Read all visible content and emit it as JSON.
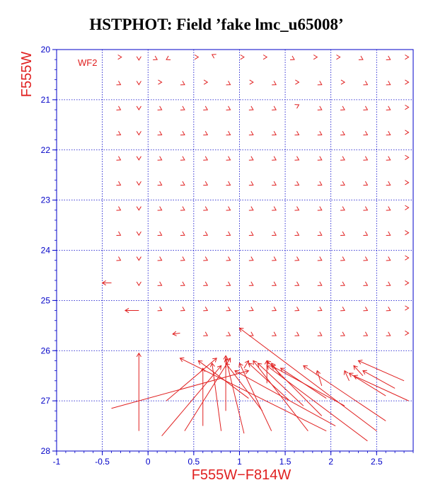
{
  "title": "HSTPHOT: Field ’fake lmc_u65008’",
  "colors": {
    "axis": "#0000c8",
    "grid": "#0000c8",
    "vectors": "#e02020",
    "title": "#000000"
  },
  "chart_data": {
    "type": "vector-field",
    "title": "HSTPHOT: Field ’fake lmc_u65008’",
    "xlabel": "F555W−F814W",
    "ylabel": "F555W",
    "panel_label": "WF2",
    "xlim": [
      -1.0,
      2.9
    ],
    "ylim": [
      28,
      20
    ],
    "y_inverted": true,
    "xticks": [
      -1,
      -0.5,
      0,
      0.5,
      1,
      1.5,
      2,
      2.5
    ],
    "yticks": [
      20,
      21,
      22,
      23,
      24,
      25,
      26,
      27,
      28
    ],
    "grid": true,
    "vectors": [
      {
        "x": -0.35,
        "y": 20.15,
        "dx": 0.06,
        "dy": 0.0
      },
      {
        "x": -0.1,
        "y": 20.15,
        "dx": 0.0,
        "dy": 0.06
      },
      {
        "x": 0.05,
        "y": 20.15,
        "dx": 0.05,
        "dy": 0.05
      },
      {
        "x": 0.25,
        "y": 20.15,
        "dx": -0.05,
        "dy": 0.05
      },
      {
        "x": 0.5,
        "y": 20.15,
        "dx": 0.05,
        "dy": 0.0
      },
      {
        "x": 0.75,
        "y": 20.15,
        "dx": -0.05,
        "dy": -0.05
      },
      {
        "x": 1.0,
        "y": 20.15,
        "dx": 0.05,
        "dy": 0.0
      },
      {
        "x": 1.25,
        "y": 20.15,
        "dx": 0.05,
        "dy": 0.0
      },
      {
        "x": 1.55,
        "y": 20.15,
        "dx": 0.05,
        "dy": 0.05
      },
      {
        "x": 1.8,
        "y": 20.15,
        "dx": 0.05,
        "dy": 0.0
      },
      {
        "x": 2.05,
        "y": 20.15,
        "dx": 0.05,
        "dy": 0.0
      },
      {
        "x": 2.3,
        "y": 20.15,
        "dx": 0.05,
        "dy": 0.05
      },
      {
        "x": 2.6,
        "y": 20.15,
        "dx": 0.05,
        "dy": 0.05
      },
      {
        "x": 2.8,
        "y": 20.15,
        "dx": 0.05,
        "dy": 0.0
      },
      {
        "x": -0.35,
        "y": 20.65,
        "dx": 0.05,
        "dy": 0.05
      },
      {
        "x": -0.1,
        "y": 20.65,
        "dx": 0.0,
        "dy": 0.05
      },
      {
        "x": 0.1,
        "y": 20.65,
        "dx": 0.05,
        "dy": 0.0
      },
      {
        "x": 0.35,
        "y": 20.65,
        "dx": 0.05,
        "dy": 0.05
      },
      {
        "x": 0.6,
        "y": 20.65,
        "dx": 0.05,
        "dy": 0.0
      },
      {
        "x": 0.85,
        "y": 20.65,
        "dx": 0.05,
        "dy": 0.05
      },
      {
        "x": 1.1,
        "y": 20.65,
        "dx": 0.05,
        "dy": 0.0
      },
      {
        "x": 1.35,
        "y": 20.65,
        "dx": 0.05,
        "dy": 0.05
      },
      {
        "x": 1.6,
        "y": 20.65,
        "dx": 0.05,
        "dy": 0.0
      },
      {
        "x": 1.85,
        "y": 20.65,
        "dx": 0.05,
        "dy": 0.05
      },
      {
        "x": 2.1,
        "y": 20.65,
        "dx": 0.05,
        "dy": 0.0
      },
      {
        "x": 2.35,
        "y": 20.65,
        "dx": 0.05,
        "dy": 0.05
      },
      {
        "x": 2.6,
        "y": 20.65,
        "dx": 0.05,
        "dy": 0.05
      },
      {
        "x": 2.8,
        "y": 20.65,
        "dx": 0.05,
        "dy": 0.0
      },
      {
        "x": -0.35,
        "y": 21.15,
        "dx": 0.05,
        "dy": 0.05
      },
      {
        "x": -0.1,
        "y": 21.15,
        "dx": 0.0,
        "dy": 0.05
      },
      {
        "x": 0.1,
        "y": 21.15,
        "dx": 0.05,
        "dy": 0.05
      },
      {
        "x": 0.35,
        "y": 21.15,
        "dx": 0.05,
        "dy": 0.05
      },
      {
        "x": 0.6,
        "y": 21.15,
        "dx": 0.05,
        "dy": 0.05
      },
      {
        "x": 0.85,
        "y": 21.15,
        "dx": 0.05,
        "dy": 0.05
      },
      {
        "x": 1.1,
        "y": 21.15,
        "dx": 0.05,
        "dy": 0.05
      },
      {
        "x": 1.35,
        "y": 21.15,
        "dx": 0.05,
        "dy": 0.05
      },
      {
        "x": 1.6,
        "y": 21.15,
        "dx": 0.05,
        "dy": -0.05
      },
      {
        "x": 1.85,
        "y": 21.15,
        "dx": 0.05,
        "dy": 0.05
      },
      {
        "x": 2.1,
        "y": 21.15,
        "dx": 0.05,
        "dy": 0.05
      },
      {
        "x": 2.35,
        "y": 21.15,
        "dx": 0.05,
        "dy": 0.05
      },
      {
        "x": 2.6,
        "y": 21.15,
        "dx": 0.05,
        "dy": 0.05
      },
      {
        "x": 2.8,
        "y": 21.15,
        "dx": 0.05,
        "dy": 0.0
      },
      {
        "x": -0.35,
        "y": 21.65,
        "dx": 0.05,
        "dy": 0.05
      },
      {
        "x": -0.1,
        "y": 21.65,
        "dx": 0.0,
        "dy": 0.05
      },
      {
        "x": 0.1,
        "y": 21.65,
        "dx": 0.05,
        "dy": 0.05
      },
      {
        "x": 0.35,
        "y": 21.65,
        "dx": 0.05,
        "dy": 0.05
      },
      {
        "x": 0.6,
        "y": 21.65,
        "dx": 0.05,
        "dy": 0.05
      },
      {
        "x": 0.85,
        "y": 21.65,
        "dx": 0.05,
        "dy": 0.05
      },
      {
        "x": 1.1,
        "y": 21.65,
        "dx": 0.05,
        "dy": 0.05
      },
      {
        "x": 1.35,
        "y": 21.65,
        "dx": 0.05,
        "dy": 0.05
      },
      {
        "x": 1.6,
        "y": 21.65,
        "dx": 0.05,
        "dy": 0.05
      },
      {
        "x": 1.85,
        "y": 21.65,
        "dx": 0.05,
        "dy": 0.05
      },
      {
        "x": 2.1,
        "y": 21.65,
        "dx": 0.05,
        "dy": 0.05
      },
      {
        "x": 2.35,
        "y": 21.65,
        "dx": 0.05,
        "dy": 0.05
      },
      {
        "x": 2.6,
        "y": 21.65,
        "dx": 0.05,
        "dy": 0.05
      },
      {
        "x": 2.8,
        "y": 21.65,
        "dx": 0.05,
        "dy": 0.0
      },
      {
        "x": -0.35,
        "y": 22.15,
        "dx": 0.05,
        "dy": 0.05
      },
      {
        "x": -0.1,
        "y": 22.15,
        "dx": 0.0,
        "dy": 0.05
      },
      {
        "x": 0.1,
        "y": 22.15,
        "dx": 0.05,
        "dy": 0.05
      },
      {
        "x": 0.35,
        "y": 22.15,
        "dx": 0.05,
        "dy": 0.05
      },
      {
        "x": 0.6,
        "y": 22.15,
        "dx": 0.05,
        "dy": 0.05
      },
      {
        "x": 0.85,
        "y": 22.15,
        "dx": 0.05,
        "dy": 0.05
      },
      {
        "x": 1.1,
        "y": 22.15,
        "dx": 0.05,
        "dy": 0.05
      },
      {
        "x": 1.35,
        "y": 22.15,
        "dx": 0.05,
        "dy": 0.05
      },
      {
        "x": 1.6,
        "y": 22.15,
        "dx": 0.05,
        "dy": 0.05
      },
      {
        "x": 1.85,
        "y": 22.15,
        "dx": 0.05,
        "dy": 0.05
      },
      {
        "x": 2.1,
        "y": 22.15,
        "dx": 0.05,
        "dy": 0.05
      },
      {
        "x": 2.35,
        "y": 22.15,
        "dx": 0.05,
        "dy": 0.05
      },
      {
        "x": 2.6,
        "y": 22.15,
        "dx": 0.05,
        "dy": 0.05
      },
      {
        "x": 2.8,
        "y": 22.15,
        "dx": 0.05,
        "dy": 0.0
      },
      {
        "x": -0.35,
        "y": 22.65,
        "dx": 0.05,
        "dy": 0.05
      },
      {
        "x": -0.1,
        "y": 22.65,
        "dx": 0.0,
        "dy": 0.05
      },
      {
        "x": 0.1,
        "y": 22.65,
        "dx": 0.05,
        "dy": 0.05
      },
      {
        "x": 0.35,
        "y": 22.65,
        "dx": 0.05,
        "dy": 0.05
      },
      {
        "x": 0.6,
        "y": 22.65,
        "dx": 0.05,
        "dy": 0.05
      },
      {
        "x": 0.85,
        "y": 22.65,
        "dx": 0.05,
        "dy": 0.05
      },
      {
        "x": 1.1,
        "y": 22.65,
        "dx": 0.05,
        "dy": 0.05
      },
      {
        "x": 1.35,
        "y": 22.65,
        "dx": 0.05,
        "dy": 0.05
      },
      {
        "x": 1.6,
        "y": 22.65,
        "dx": 0.05,
        "dy": 0.05
      },
      {
        "x": 1.85,
        "y": 22.65,
        "dx": 0.05,
        "dy": 0.05
      },
      {
        "x": 2.1,
        "y": 22.65,
        "dx": 0.05,
        "dy": 0.05
      },
      {
        "x": 2.35,
        "y": 22.65,
        "dx": 0.05,
        "dy": 0.05
      },
      {
        "x": 2.6,
        "y": 22.65,
        "dx": 0.05,
        "dy": 0.05
      },
      {
        "x": 2.8,
        "y": 22.65,
        "dx": 0.05,
        "dy": 0.0
      },
      {
        "x": -0.35,
        "y": 23.15,
        "dx": 0.05,
        "dy": 0.05
      },
      {
        "x": -0.1,
        "y": 23.15,
        "dx": 0.0,
        "dy": 0.05
      },
      {
        "x": 0.1,
        "y": 23.15,
        "dx": 0.05,
        "dy": 0.05
      },
      {
        "x": 0.35,
        "y": 23.15,
        "dx": 0.05,
        "dy": 0.05
      },
      {
        "x": 0.6,
        "y": 23.15,
        "dx": 0.05,
        "dy": 0.05
      },
      {
        "x": 0.85,
        "y": 23.15,
        "dx": 0.05,
        "dy": 0.05
      },
      {
        "x": 1.1,
        "y": 23.15,
        "dx": 0.05,
        "dy": 0.05
      },
      {
        "x": 1.35,
        "y": 23.15,
        "dx": 0.05,
        "dy": 0.05
      },
      {
        "x": 1.6,
        "y": 23.15,
        "dx": 0.05,
        "dy": 0.05
      },
      {
        "x": 1.85,
        "y": 23.15,
        "dx": 0.05,
        "dy": 0.05
      },
      {
        "x": 2.1,
        "y": 23.15,
        "dx": 0.05,
        "dy": 0.05
      },
      {
        "x": 2.35,
        "y": 23.15,
        "dx": 0.05,
        "dy": 0.05
      },
      {
        "x": 2.6,
        "y": 23.15,
        "dx": 0.05,
        "dy": 0.05
      },
      {
        "x": 2.8,
        "y": 23.15,
        "dx": 0.05,
        "dy": 0.0
      },
      {
        "x": -0.35,
        "y": 23.65,
        "dx": 0.05,
        "dy": 0.05
      },
      {
        "x": -0.1,
        "y": 23.65,
        "dx": 0.0,
        "dy": 0.05
      },
      {
        "x": 0.1,
        "y": 23.65,
        "dx": 0.05,
        "dy": 0.05
      },
      {
        "x": 0.35,
        "y": 23.65,
        "dx": 0.05,
        "dy": 0.05
      },
      {
        "x": 0.6,
        "y": 23.65,
        "dx": 0.05,
        "dy": 0.05
      },
      {
        "x": 0.85,
        "y": 23.65,
        "dx": 0.05,
        "dy": 0.05
      },
      {
        "x": 1.1,
        "y": 23.65,
        "dx": 0.05,
        "dy": 0.05
      },
      {
        "x": 1.35,
        "y": 23.65,
        "dx": 0.05,
        "dy": 0.05
      },
      {
        "x": 1.6,
        "y": 23.65,
        "dx": 0.05,
        "dy": 0.05
      },
      {
        "x": 1.85,
        "y": 23.65,
        "dx": 0.05,
        "dy": 0.05
      },
      {
        "x": 2.1,
        "y": 23.65,
        "dx": 0.05,
        "dy": 0.05
      },
      {
        "x": 2.35,
        "y": 23.65,
        "dx": 0.05,
        "dy": 0.05
      },
      {
        "x": 2.6,
        "y": 23.65,
        "dx": 0.05,
        "dy": 0.05
      },
      {
        "x": 2.8,
        "y": 23.65,
        "dx": 0.05,
        "dy": 0.0
      },
      {
        "x": -0.35,
        "y": 24.15,
        "dx": 0.05,
        "dy": 0.05
      },
      {
        "x": -0.1,
        "y": 24.15,
        "dx": 0.0,
        "dy": 0.05
      },
      {
        "x": 0.1,
        "y": 24.15,
        "dx": 0.05,
        "dy": 0.05
      },
      {
        "x": 0.35,
        "y": 24.15,
        "dx": 0.05,
        "dy": 0.05
      },
      {
        "x": 0.6,
        "y": 24.15,
        "dx": 0.05,
        "dy": 0.05
      },
      {
        "x": 0.85,
        "y": 24.15,
        "dx": 0.05,
        "dy": 0.05
      },
      {
        "x": 1.1,
        "y": 24.15,
        "dx": 0.05,
        "dy": 0.05
      },
      {
        "x": 1.35,
        "y": 24.15,
        "dx": 0.05,
        "dy": 0.05
      },
      {
        "x": 1.6,
        "y": 24.15,
        "dx": 0.05,
        "dy": 0.05
      },
      {
        "x": 1.85,
        "y": 24.15,
        "dx": 0.05,
        "dy": 0.05
      },
      {
        "x": 2.1,
        "y": 24.15,
        "dx": 0.05,
        "dy": 0.05
      },
      {
        "x": 2.35,
        "y": 24.15,
        "dx": 0.05,
        "dy": 0.05
      },
      {
        "x": 2.6,
        "y": 24.15,
        "dx": 0.05,
        "dy": 0.05
      },
      {
        "x": 2.8,
        "y": 24.15,
        "dx": 0.05,
        "dy": 0.0
      },
      {
        "x": -0.4,
        "y": 24.65,
        "dx": -0.1,
        "dy": 0.0
      },
      {
        "x": -0.1,
        "y": 24.65,
        "dx": 0.0,
        "dy": 0.05
      },
      {
        "x": 0.1,
        "y": 24.65,
        "dx": 0.05,
        "dy": 0.05
      },
      {
        "x": 0.35,
        "y": 24.65,
        "dx": 0.05,
        "dy": 0.05
      },
      {
        "x": 0.6,
        "y": 24.65,
        "dx": 0.05,
        "dy": 0.05
      },
      {
        "x": 0.85,
        "y": 24.65,
        "dx": 0.05,
        "dy": 0.05
      },
      {
        "x": 1.1,
        "y": 24.65,
        "dx": 0.05,
        "dy": 0.05
      },
      {
        "x": 1.35,
        "y": 24.65,
        "dx": 0.05,
        "dy": 0.05
      },
      {
        "x": 1.6,
        "y": 24.65,
        "dx": 0.05,
        "dy": 0.05
      },
      {
        "x": 1.85,
        "y": 24.65,
        "dx": 0.05,
        "dy": 0.05
      },
      {
        "x": 2.1,
        "y": 24.65,
        "dx": 0.05,
        "dy": 0.05
      },
      {
        "x": 2.35,
        "y": 24.65,
        "dx": 0.05,
        "dy": 0.05
      },
      {
        "x": 2.6,
        "y": 24.65,
        "dx": 0.05,
        "dy": 0.05
      },
      {
        "x": 2.8,
        "y": 24.65,
        "dx": 0.05,
        "dy": 0.0
      },
      {
        "x": -0.1,
        "y": 25.2,
        "dx": -0.15,
        "dy": 0.0
      },
      {
        "x": 0.1,
        "y": 25.15,
        "dx": 0.05,
        "dy": 0.05
      },
      {
        "x": 0.35,
        "y": 25.15,
        "dx": 0.05,
        "dy": 0.05
      },
      {
        "x": 0.6,
        "y": 25.15,
        "dx": 0.05,
        "dy": 0.05
      },
      {
        "x": 0.85,
        "y": 25.15,
        "dx": 0.05,
        "dy": 0.05
      },
      {
        "x": 1.1,
        "y": 25.15,
        "dx": 0.05,
        "dy": 0.05
      },
      {
        "x": 1.35,
        "y": 25.15,
        "dx": 0.05,
        "dy": 0.05
      },
      {
        "x": 1.6,
        "y": 25.15,
        "dx": 0.05,
        "dy": 0.05
      },
      {
        "x": 1.85,
        "y": 25.15,
        "dx": 0.05,
        "dy": 0.05
      },
      {
        "x": 2.1,
        "y": 25.15,
        "dx": 0.05,
        "dy": 0.05
      },
      {
        "x": 2.35,
        "y": 25.15,
        "dx": 0.05,
        "dy": 0.05
      },
      {
        "x": 2.6,
        "y": 25.15,
        "dx": 0.05,
        "dy": 0.05
      },
      {
        "x": 2.8,
        "y": 25.15,
        "dx": 0.05,
        "dy": 0.0
      },
      {
        "x": 0.35,
        "y": 25.65,
        "dx": -0.08,
        "dy": 0.02
      },
      {
        "x": 0.6,
        "y": 25.65,
        "dx": 0.05,
        "dy": 0.05
      },
      {
        "x": 0.85,
        "y": 25.65,
        "dx": 0.05,
        "dy": 0.05
      },
      {
        "x": 1.1,
        "y": 25.65,
        "dx": 0.05,
        "dy": 0.05
      },
      {
        "x": 1.35,
        "y": 25.65,
        "dx": 0.05,
        "dy": 0.05
      },
      {
        "x": 1.6,
        "y": 25.65,
        "dx": 0.05,
        "dy": 0.05
      },
      {
        "x": 1.85,
        "y": 25.65,
        "dx": 0.05,
        "dy": 0.05
      },
      {
        "x": 2.1,
        "y": 25.65,
        "dx": 0.05,
        "dy": 0.05
      },
      {
        "x": 2.35,
        "y": 25.65,
        "dx": 0.05,
        "dy": 0.05
      },
      {
        "x": 2.6,
        "y": 25.65,
        "dx": 0.05,
        "dy": 0.05
      },
      {
        "x": 2.8,
        "y": 25.65,
        "dx": 0.05,
        "dy": 0.0
      },
      {
        "x": -0.1,
        "y": 27.6,
        "dx": 0.0,
        "dy": -1.55
      },
      {
        "x": -0.4,
        "y": 27.15,
        "dx": 1.5,
        "dy": -0.75
      },
      {
        "x": 0.15,
        "y": 27.7,
        "dx": 0.65,
        "dy": -1.4
      },
      {
        "x": 0.2,
        "y": 27.0,
        "dx": 0.55,
        "dy": -0.85
      },
      {
        "x": 0.4,
        "y": 27.6,
        "dx": 0.5,
        "dy": -1.45
      },
      {
        "x": 0.6,
        "y": 27.5,
        "dx": 0.0,
        "dy": -1.15
      },
      {
        "x": 0.8,
        "y": 27.6,
        "dx": -0.1,
        "dy": -1.35
      },
      {
        "x": 0.85,
        "y": 27.2,
        "dx": 0.0,
        "dy": -1.1
      },
      {
        "x": 1.05,
        "y": 27.65,
        "dx": -0.2,
        "dy": -1.5
      },
      {
        "x": 1.1,
        "y": 26.95,
        "dx": -0.55,
        "dy": -0.75
      },
      {
        "x": 1.25,
        "y": 27.2,
        "dx": -0.4,
        "dy": -0.95
      },
      {
        "x": 1.35,
        "y": 27.6,
        "dx": -0.35,
        "dy": -1.35
      },
      {
        "x": 1.55,
        "y": 27.0,
        "dx": -0.45,
        "dy": -0.75
      },
      {
        "x": 1.7,
        "y": 27.1,
        "dx": -0.5,
        "dy": -0.85
      },
      {
        "x": 1.75,
        "y": 27.6,
        "dx": -0.6,
        "dy": -1.4
      },
      {
        "x": 1.9,
        "y": 27.3,
        "dx": -0.6,
        "dy": -1.1
      },
      {
        "x": 1.95,
        "y": 26.95,
        "dx": -0.5,
        "dy": -0.6
      },
      {
        "x": 1.95,
        "y": 27.6,
        "dx": -1.6,
        "dy": -1.45
      },
      {
        "x": 2.05,
        "y": 27.5,
        "dx": -1.1,
        "dy": -1.1
      },
      {
        "x": 2.15,
        "y": 27.1,
        "dx": -0.8,
        "dy": -0.8
      },
      {
        "x": 2.4,
        "y": 27.8,
        "dx": -1.1,
        "dy": -1.5
      },
      {
        "x": 2.5,
        "y": 27.6,
        "dx": -1.5,
        "dy": -2.05
      },
      {
        "x": 2.6,
        "y": 27.4,
        "dx": -0.9,
        "dy": -1.1
      },
      {
        "x": 2.6,
        "y": 26.9,
        "dx": -0.4,
        "dy": -0.45
      },
      {
        "x": 2.7,
        "y": 26.75,
        "dx": -0.35,
        "dy": -0.35
      },
      {
        "x": 2.8,
        "y": 26.6,
        "dx": -0.5,
        "dy": -0.4
      },
      {
        "x": 2.85,
        "y": 27.0,
        "dx": -0.6,
        "dy": -0.5
      },
      {
        "x": 1.3,
        "y": 26.65,
        "dx": 0.0,
        "dy": -0.45
      },
      {
        "x": 1.45,
        "y": 26.5,
        "dx": -0.1,
        "dy": -0.25
      },
      {
        "x": 1.9,
        "y": 26.7,
        "dx": -0.05,
        "dy": -0.3
      },
      {
        "x": 2.2,
        "y": 26.6,
        "dx": -0.05,
        "dy": -0.2
      },
      {
        "x": 2.35,
        "y": 26.5,
        "dx": -0.1,
        "dy": -0.2
      },
      {
        "x": 1.05,
        "y": 26.35,
        "dx": 0.05,
        "dy": -0.15
      }
    ]
  }
}
